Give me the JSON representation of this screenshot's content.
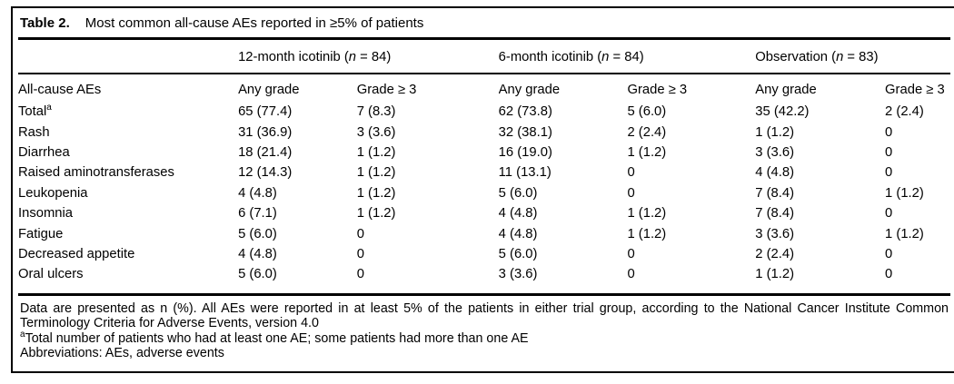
{
  "table": {
    "title_label": "Table 2.",
    "title_text": "Most common all-cause AEs reported in ≥5% of patients",
    "groups": [
      {
        "prefix": "12-month icotinib (",
        "var": "n",
        "suffix": " = 84)"
      },
      {
        "prefix": "6-month icotinib (",
        "var": "n",
        "suffix": " = 84)"
      },
      {
        "prefix": "Observation (",
        "var": "n",
        "suffix": " = 83)"
      }
    ],
    "col_headers": {
      "label": "All-cause AEs",
      "any_grade": "Any grade",
      "grade_ge3": "Grade ≥ 3"
    },
    "rows": [
      {
        "label": "Total",
        "sup": "a",
        "values": [
          "65 (77.4)",
          "7 (8.3)",
          "62 (73.8)",
          "5 (6.0)",
          "35 (42.2)",
          "2 (2.4)"
        ]
      },
      {
        "label": "Rash",
        "sup": "",
        "values": [
          "31 (36.9)",
          "3 (3.6)",
          "32 (38.1)",
          "2 (2.4)",
          "1 (1.2)",
          "0"
        ]
      },
      {
        "label": "Diarrhea",
        "sup": "",
        "values": [
          "18 (21.4)",
          "1 (1.2)",
          "16 (19.0)",
          "1 (1.2)",
          "3 (3.6)",
          "0"
        ]
      },
      {
        "label": "Raised aminotransferases",
        "sup": "",
        "values": [
          "12 (14.3)",
          "1 (1.2)",
          "11 (13.1)",
          "0",
          "4 (4.8)",
          "0"
        ]
      },
      {
        "label": "Leukopenia",
        "sup": "",
        "values": [
          "4 (4.8)",
          "1 (1.2)",
          "5 (6.0)",
          "0",
          "7 (8.4)",
          "1 (1.2)"
        ]
      },
      {
        "label": "Insomnia",
        "sup": "",
        "values": [
          "6 (7.1)",
          "1 (1.2)",
          "4 (4.8)",
          "1 (1.2)",
          "7 (8.4)",
          "0"
        ]
      },
      {
        "label": "Fatigue",
        "sup": "",
        "values": [
          "5 (6.0)",
          "0",
          "4 (4.8)",
          "1 (1.2)",
          "3 (3.6)",
          "1 (1.2)"
        ]
      },
      {
        "label": "Decreased appetite",
        "sup": "",
        "values": [
          "4 (4.8)",
          "0",
          "5 (6.0)",
          "0",
          "2 (2.4)",
          "0"
        ]
      },
      {
        "label": "Oral ulcers",
        "sup": "",
        "values": [
          "5 (6.0)",
          "0",
          "3 (3.6)",
          "0",
          "1 (1.2)",
          "0"
        ]
      }
    ],
    "footnotes": {
      "main": "Data are presented as n (%). All AEs were reported in at least 5% of the patients in either trial group, according to the National Cancer Institute Common Terminology Criteria for Adverse Events, version 4.0",
      "note_a_marker": "a",
      "note_a": "Total number of patients who had at least one AE; some patients had more than one AE",
      "abbreviations": "Abbreviations: AEs, adverse events"
    }
  }
}
